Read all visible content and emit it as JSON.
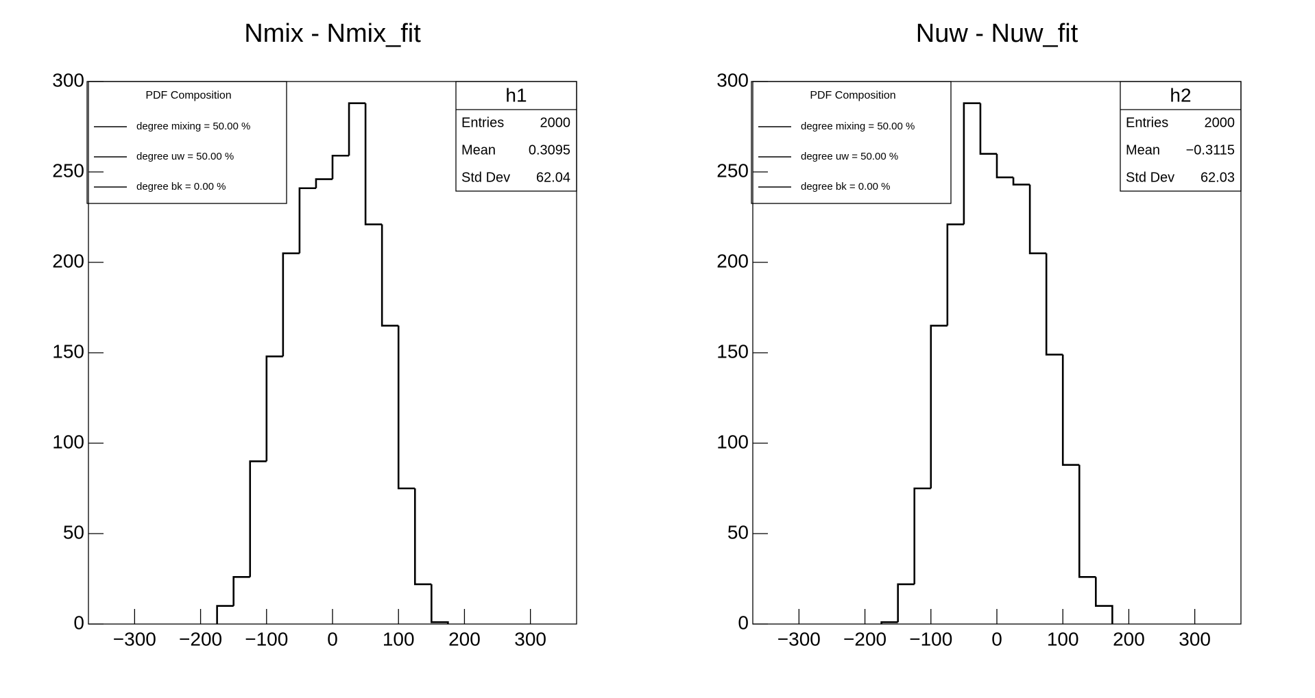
{
  "chart_data": [
    {
      "type": "histogram",
      "title": "Nmix - Nmix_fit",
      "bins": [
        -175,
        -150,
        -125,
        -100,
        -75,
        -50,
        -25,
        0,
        25,
        50,
        75,
        100,
        125,
        150,
        175
      ],
      "counts": [
        10,
        26,
        90,
        148,
        205,
        241,
        246,
        259,
        288,
        221,
        165,
        75,
        22,
        1
      ],
      "color": "#000000",
      "xlim": [
        -370,
        370
      ],
      "ylim": [
        0,
        300
      ],
      "xticks": [
        {
          "value": -300,
          "label": "−300"
        },
        {
          "value": -200,
          "label": "−200"
        },
        {
          "value": -100,
          "label": "−100"
        },
        0,
        100,
        200,
        300
      ],
      "yticks": [
        0,
        50,
        100,
        150,
        200,
        250,
        300
      ],
      "legend": {
        "title": "PDF Composition",
        "entries": [
          "degree mixing = 50.00 %",
          "degree uw = 50.00 %",
          "degree bk = 0.00 %"
        ]
      },
      "stats": {
        "name": "h1",
        "rows": [
          [
            "Entries",
            "2000"
          ],
          [
            "Mean",
            "0.3095"
          ],
          [
            "Std Dev",
            "62.04"
          ]
        ]
      }
    },
    {
      "type": "histogram",
      "title": "Nuw - Nuw_fit",
      "bins": [
        -175,
        -150,
        -125,
        -100,
        -75,
        -50,
        -25,
        0,
        25,
        50,
        75,
        100,
        125,
        150,
        175
      ],
      "counts": [
        1,
        22,
        75,
        165,
        221,
        288,
        260,
        247,
        243,
        205,
        149,
        88,
        26,
        10
      ],
      "color": "#000000",
      "xlim": [
        -370,
        370
      ],
      "ylim": [
        0,
        300
      ],
      "xticks": [
        {
          "value": -300,
          "label": "−300"
        },
        {
          "value": -200,
          "label": "−200"
        },
        {
          "value": -100,
          "label": "−100"
        },
        0,
        100,
        200,
        300
      ],
      "yticks": [
        0,
        50,
        100,
        150,
        200,
        250,
        300
      ],
      "legend": {
        "title": "PDF Composition",
        "entries": [
          "degree mixing = 50.00 %",
          "degree uw = 50.00 %",
          "degree bk = 0.00 %"
        ]
      },
      "stats": {
        "name": "h2",
        "rows": [
          [
            "Entries",
            "2000"
          ],
          [
            "Mean",
            "−0.3115"
          ],
          [
            "Std Dev",
            "62.03"
          ]
        ]
      }
    }
  ]
}
